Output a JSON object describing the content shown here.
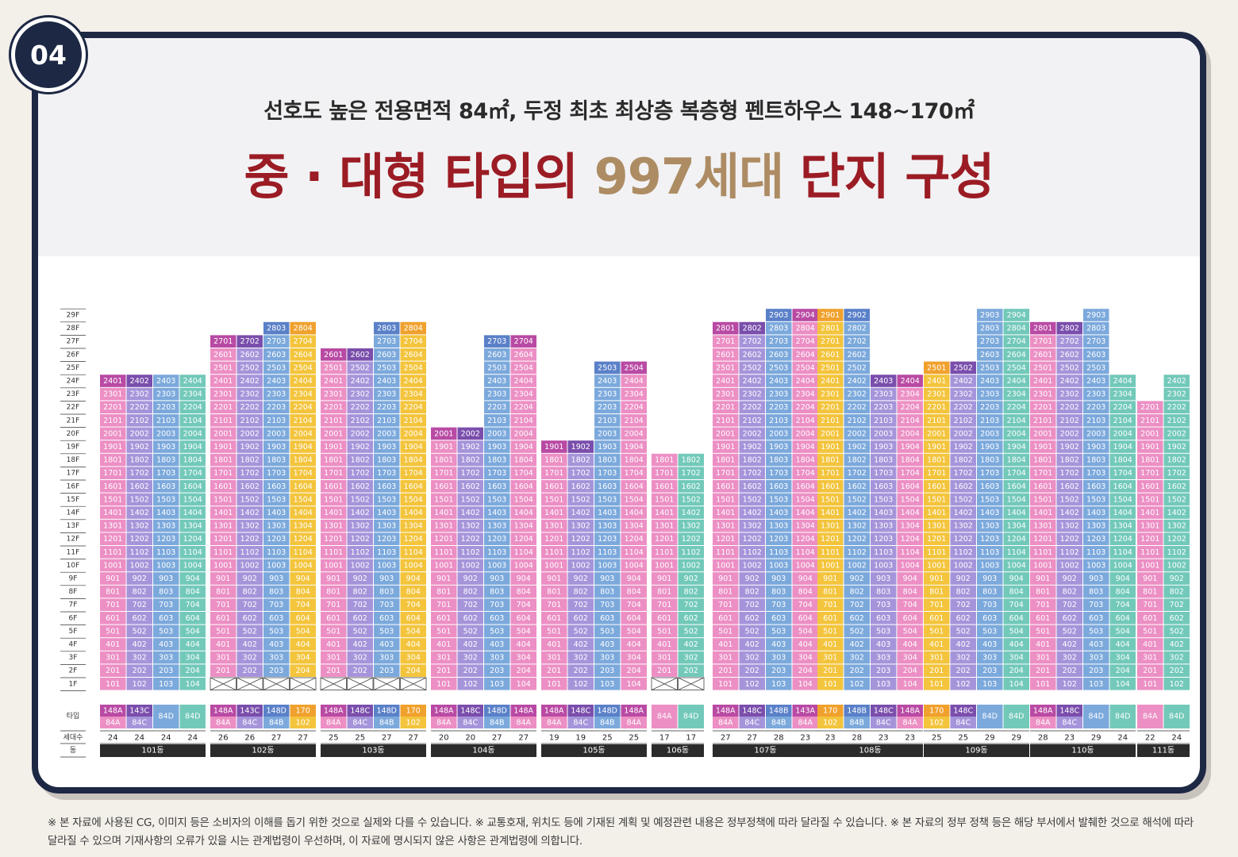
{
  "badge": "04",
  "subtitle": "선호도 높은 전용면적 84㎡, 두정 최초 최상층 복층형 펜트하우스 148~170㎡",
  "title": {
    "part1": "중 · 대형 타입의 ",
    "highlight": "997세대",
    "part2": " 단지 구성"
  },
  "row_labels": {
    "type": "타입",
    "households": "세대수",
    "building": "동"
  },
  "floor_prefix_unit": "F",
  "colors": {
    "pink": "#ec8fc4",
    "lavender": "#a694da",
    "blue": "#7ca9dc",
    "yellow": "#f3c43c",
    "teal": "#72c9b9",
    "purple": "#b94aa4",
    "violet": "#7a4eac",
    "royal": "#5a80c8",
    "orange": "#f0a12d",
    "empty": "#ffffff",
    "footer": "#2b2b2b"
  },
  "chart_data": {
    "type": "table",
    "floors": [
      "1F",
      "2F",
      "3F",
      "4F",
      "5F",
      "6F",
      "7F",
      "8F",
      "9F",
      "10F",
      "11F",
      "12F",
      "13F",
      "14F",
      "15F",
      "16F",
      "17F",
      "18F",
      "19F",
      "20F",
      "21F",
      "22F",
      "23F",
      "24F",
      "25F",
      "26F",
      "27F",
      "28F",
      "29F"
    ],
    "buildings": [
      {
        "name": "101동",
        "lines": [
          {
            "top": 24,
            "type": [
              "148A",
              "84A"
            ],
            "count": "24",
            "base": "pink",
            "top_color": "purple",
            "top_floors": 1
          },
          {
            "top": 24,
            "type": [
              "143C",
              "84C"
            ],
            "count": "24",
            "base": "lavender",
            "top_color": "violet",
            "top_floors": 1
          },
          {
            "top": 24,
            "type": [
              "84D"
            ],
            "count": "24",
            "base": "blue"
          },
          {
            "top": 24,
            "type": [
              "84D"
            ],
            "count": "24",
            "base": "teal"
          }
        ]
      },
      {
        "name": "102동",
        "lines": [
          {
            "top": 27,
            "type": [
              "148A",
              "84A"
            ],
            "count": "26",
            "base": "pink",
            "top_color": "purple",
            "top_floors": 1
          },
          {
            "top": 27,
            "type": [
              "143C",
              "84C"
            ],
            "count": "26",
            "base": "lavender",
            "top_color": "violet",
            "top_floors": 1
          },
          {
            "top": 28,
            "type": [
              "148D",
              "84B"
            ],
            "count": "27",
            "base": "blue",
            "top_color": "royal",
            "top_floors": 1
          },
          {
            "top": 28,
            "type": [
              "170",
              "102"
            ],
            "count": "27",
            "base": "yellow",
            "top_color": "orange",
            "top_floors": 1
          }
        ],
        "empty_first": true
      },
      {
        "name": "103동",
        "lines": [
          {
            "top": 26,
            "type": [
              "148A",
              "84A"
            ],
            "count": "25",
            "base": "pink",
            "top_color": "purple",
            "top_floors": 1
          },
          {
            "top": 26,
            "type": [
              "148C",
              "84C"
            ],
            "count": "25",
            "base": "lavender",
            "top_color": "violet",
            "top_floors": 1
          },
          {
            "top": 28,
            "type": [
              "148D",
              "84B"
            ],
            "count": "27",
            "base": "blue",
            "top_color": "royal",
            "top_floors": 1
          },
          {
            "top": 28,
            "type": [
              "170",
              "102"
            ],
            "count": "27",
            "base": "yellow",
            "top_color": "orange",
            "top_floors": 1
          }
        ],
        "empty_first": true
      },
      {
        "name": "104동",
        "lines": [
          {
            "top": 20,
            "type": [
              "148A",
              "84A"
            ],
            "count": "20",
            "base": "pink",
            "top_color": "purple",
            "top_floors": 1
          },
          {
            "top": 20,
            "type": [
              "148C",
              "84C"
            ],
            "count": "20",
            "base": "lavender",
            "top_color": "violet",
            "top_floors": 1
          },
          {
            "top": 27,
            "type": [
              "148D",
              "84B"
            ],
            "count": "27",
            "base": "blue",
            "top_color": "royal",
            "top_floors": 1
          },
          {
            "top": 27,
            "type": [
              "148A",
              "84A"
            ],
            "count": "27",
            "base": "pink",
            "top_color": "purple",
            "top_floors": 1
          }
        ]
      },
      {
        "name": "105동",
        "lines": [
          {
            "top": 19,
            "type": [
              "148A",
              "84A"
            ],
            "count": "19",
            "base": "pink",
            "top_color": "purple",
            "top_floors": 1
          },
          {
            "top": 19,
            "type": [
              "148C",
              "84C"
            ],
            "count": "19",
            "base": "lavender",
            "top_color": "violet",
            "top_floors": 1
          },
          {
            "top": 25,
            "type": [
              "148D",
              "84B"
            ],
            "count": "25",
            "base": "blue",
            "top_color": "royal",
            "top_floors": 1
          },
          {
            "top": 25,
            "type": [
              "148A",
              "84A"
            ],
            "count": "25",
            "base": "pink",
            "top_color": "purple",
            "top_floors": 1
          }
        ]
      },
      {
        "name": "106동",
        "lines": [
          {
            "top": 18,
            "type": [
              "84A"
            ],
            "count": "17",
            "base": "pink"
          },
          {
            "top": 18,
            "type": [
              "84D"
            ],
            "count": "17",
            "base": "teal"
          }
        ],
        "empty_first": true
      },
      {
        "name": "107동",
        "lines": [
          {
            "top": 28,
            "type": [
              "148A",
              "84A"
            ],
            "count": "27",
            "base": "pink",
            "top_color": "purple",
            "top_floors": 1
          },
          {
            "top": 28,
            "type": [
              "148C",
              "84C"
            ],
            "count": "27",
            "base": "lavender",
            "top_color": "violet",
            "top_floors": 1
          },
          {
            "top": 29,
            "type": [
              "148B",
              "84B"
            ],
            "count": "28",
            "base": "blue",
            "top_color": "royal",
            "top_floors": 1
          },
          {
            "top": 29,
            "type": [
              "143A",
              "84A"
            ],
            "count": "23",
            "base": "pink",
            "top_color": "purple",
            "top_floors": 1
          }
        ]
      },
      {
        "name": "108동",
        "lines": [
          {
            "top": 29,
            "type": [
              "170",
              "102"
            ],
            "count": "23",
            "base": "yellow",
            "top_color": "orange",
            "top_floors": 1
          },
          {
            "top": 29,
            "type": [
              "148B",
              "84B"
            ],
            "count": "28",
            "base": "blue",
            "top_color": "royal",
            "top_floors": 1
          },
          {
            "top": 24,
            "type": [
              "148C",
              "84C"
            ],
            "count": "23",
            "base": "lavender",
            "top_color": "violet",
            "top_floors": 1
          },
          {
            "top": 24,
            "type": [
              "148A",
              "84A"
            ],
            "count": "23",
            "base": "pink",
            "top_color": "purple",
            "top_floors": 1
          }
        ]
      },
      {
        "name": "109동",
        "lines": [
          {
            "top": 25,
            "type": [
              "170",
              "102"
            ],
            "count": "25",
            "base": "yellow",
            "top_color": "orange",
            "top_floors": 1
          },
          {
            "top": 25,
            "type": [
              "148C",
              "84C"
            ],
            "count": "25",
            "base": "lavender",
            "top_color": "violet",
            "top_floors": 1
          },
          {
            "top": 29,
            "type": [
              "84D"
            ],
            "count": "29",
            "base": "blue"
          },
          {
            "top": 29,
            "type": [
              "84D"
            ],
            "count": "29",
            "base": "teal"
          }
        ]
      },
      {
        "name": "110동",
        "lines": [
          {
            "top": 28,
            "type": [
              "148A",
              "84A"
            ],
            "count": "28",
            "base": "pink",
            "top_color": "purple",
            "top_floors": 1
          },
          {
            "top": 28,
            "type": [
              "148C",
              "84C"
            ],
            "count": "23",
            "base": "lavender",
            "top_color": "violet",
            "top_floors": 1
          },
          {
            "top": 29,
            "type": [
              "84D"
            ],
            "count": "29",
            "base": "blue"
          },
          {
            "top": 24,
            "type": [
              "84D"
            ],
            "count": "24",
            "base": "teal"
          }
        ]
      },
      {
        "name": "111동",
        "lines": [
          {
            "top": 22,
            "type": [
              "84A"
            ],
            "count": "22",
            "base": "pink"
          },
          {
            "top": 24,
            "type": [
              "84D"
            ],
            "count": "24",
            "base": "teal"
          }
        ]
      }
    ]
  },
  "footnote": "※ 본 자료에 사용된 CG, 이미지 등은 소비자의 이해를 돕기 위한 것으로 실제와 다를 수 있습니다. ※ 교통호재, 위치도 등에 기재된 계획 및 예정관련 내용은 정부정책에 따라 달라질 수 있습니다. ※ 본 자료의 정부 정책 등은 해당 부서에서 발췌한 것으로 해석에 따라 달라질 수 있으며 기재사항의 오류가 있을 시는 관계법령이 우선하며, 이 자료에 명시되지 않은 사항은 관계법령에 의합니다."
}
